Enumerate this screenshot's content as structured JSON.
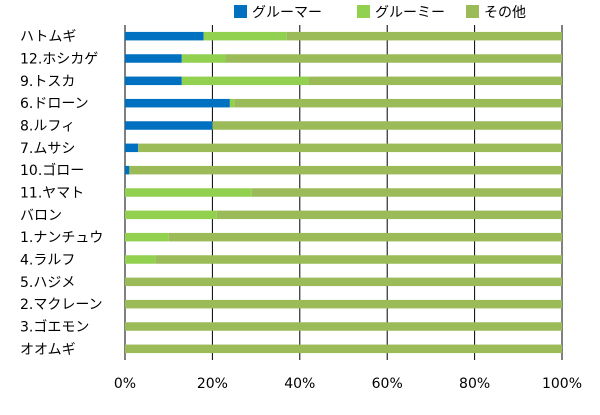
{
  "chart_data": {
    "type": "bar",
    "orientation": "horizontal",
    "stacked": "percent",
    "categories": [
      "ハトムギ",
      "12.ホシカゲ",
      "9.トスカ",
      "6.ドローン",
      "8.ルフィ",
      "7.ムサシ",
      "10.ゴロー",
      "11.ヤマト",
      "バロン",
      "1.ナンチュウ",
      "4.ラルフ",
      "5.ハジメ",
      "2.マクレーン",
      "3.ゴエモン",
      "オオムギ"
    ],
    "series": [
      {
        "name": "グルーマー",
        "color": "#0070c0",
        "values": [
          18,
          13,
          13,
          24,
          20,
          3,
          1,
          0,
          0,
          0,
          0,
          0,
          0,
          0,
          0
        ]
      },
      {
        "name": "グルーミー",
        "color": "#92d050",
        "values": [
          19,
          10,
          29,
          1,
          0,
          0,
          0,
          29,
          21,
          10,
          7,
          0,
          0,
          0,
          0
        ]
      },
      {
        "name": "その他",
        "color": "#9bbb59",
        "values": [
          63,
          77,
          58,
          75,
          80,
          97,
          99,
          71,
          79,
          90,
          93,
          100,
          100,
          100,
          100
        ]
      }
    ],
    "xlim": [
      0,
      100
    ],
    "xticks": [
      "0%",
      "20%",
      "40%",
      "60%",
      "80%",
      "100%"
    ],
    "grid": true,
    "legend": "top-right"
  }
}
